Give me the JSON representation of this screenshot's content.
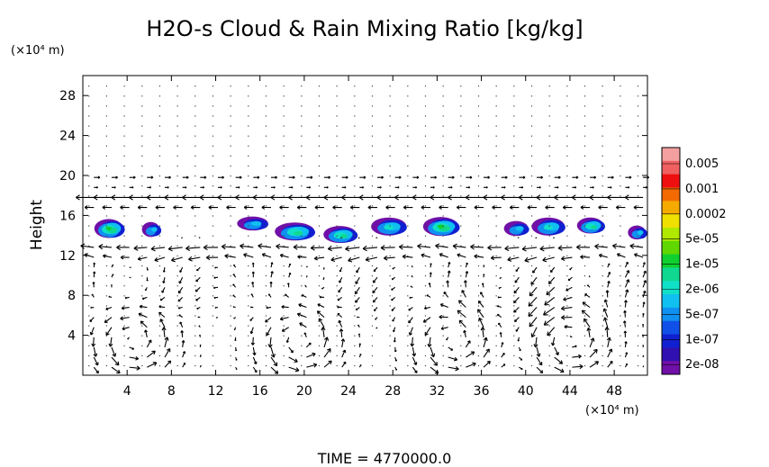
{
  "chart_data": {
    "type": "heatmap",
    "title": "H2O-s Cloud & Rain Mixing Ratio [kg/kg]",
    "ylabel": "Height",
    "xunit": "(×10⁴ m)",
    "yunit": "(×10⁴ m)",
    "time_label": "TIME = 4770000.0",
    "xlim": [
      0,
      51
    ],
    "ylim": [
      0,
      30
    ],
    "xticks": [
      4,
      8,
      12,
      16,
      20,
      24,
      28,
      32,
      36,
      40,
      44,
      48
    ],
    "yticks": [
      4,
      8,
      12,
      16,
      20,
      24,
      28
    ],
    "colorbar": {
      "labels": [
        "0.005",
        "0.001",
        "0.0002",
        "5e-05",
        "1e-05",
        "2e-06",
        "5e-07",
        "1e-07",
        "2e-08"
      ],
      "colors_top_to_bottom": [
        "#f4a0a0",
        "#f06060",
        "#ee1010",
        "#f26a00",
        "#f5aa00",
        "#f0e000",
        "#b0e800",
        "#60d800",
        "#10d030",
        "#10d890",
        "#10e0c8",
        "#10c0f0",
        "#1090f0",
        "#1050e8",
        "#1020d0",
        "#3010b0",
        "#7010a8"
      ]
    },
    "cloud_band": {
      "height_range": [
        12.5,
        16.5
      ],
      "blobs": [
        {
          "x": 2.5,
          "y": 14.6,
          "w": 2.6,
          "h": 1.9,
          "level": 4
        },
        {
          "x": 6.3,
          "y": 14.5,
          "w": 1.6,
          "h": 1.5,
          "level": 1
        },
        {
          "x": 15.5,
          "y": 15.1,
          "w": 2.8,
          "h": 1.4,
          "level": 1
        },
        {
          "x": 19.3,
          "y": 14.3,
          "w": 3.6,
          "h": 1.8,
          "level": 3
        },
        {
          "x": 23.4,
          "y": 14.0,
          "w": 3.0,
          "h": 1.7,
          "level": 3
        },
        {
          "x": 27.8,
          "y": 14.8,
          "w": 3.2,
          "h": 1.8,
          "level": 2
        },
        {
          "x": 32.5,
          "y": 14.8,
          "w": 3.2,
          "h": 1.9,
          "level": 4
        },
        {
          "x": 39.3,
          "y": 14.6,
          "w": 2.2,
          "h": 1.5,
          "level": 1
        },
        {
          "x": 42.2,
          "y": 14.8,
          "w": 3.0,
          "h": 1.8,
          "level": 2
        },
        {
          "x": 46.0,
          "y": 14.9,
          "w": 2.4,
          "h": 1.6,
          "level": 3
        },
        {
          "x": 50.2,
          "y": 14.2,
          "w": 1.6,
          "h": 1.4,
          "level": 1
        }
      ]
    },
    "wind_field": {
      "jet_upper_y": 17.6,
      "jet_lower_y": 12.4,
      "circulation_centers_x": [
        4.5,
        19.5,
        33.5,
        44.0
      ],
      "circulation_center_y": 3.5
    }
  }
}
